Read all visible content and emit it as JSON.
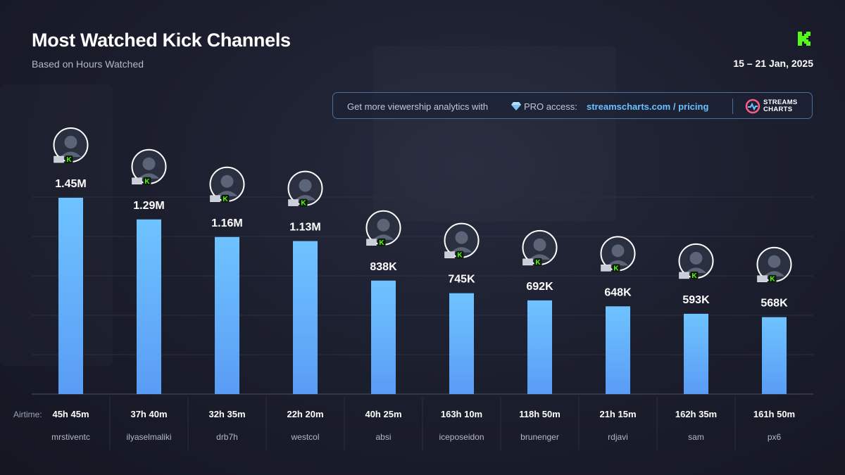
{
  "header": {
    "title": "Most Watched Kick Channels",
    "subtitle": "Based on Hours Watched",
    "date_range": "15 – 21 Jan, 2025",
    "logo_icon": "kick-logo-icon"
  },
  "promo": {
    "text": "Get more viewership analytics with",
    "icon": "diamond-icon",
    "access_text": "PRO access:",
    "link": "streamscharts.com / pricing",
    "brand_icon": "streams-charts-logo-icon",
    "brand_line1": "STREAMS",
    "brand_line2": "CHARTS"
  },
  "colors": {
    "bar_top": "#6ec3ff",
    "bar_bottom": "#5a9cf5",
    "kick_green": "#53fc18",
    "link": "#6cc0ff",
    "background": "#1c1f2e"
  },
  "airtime_label": "Airtime:",
  "chart_data": {
    "type": "bar",
    "title": "Most Watched Kick Channels",
    "subtitle": "Based on Hours Watched",
    "categories": [
      "mrstiventc",
      "ilyaselmaliki",
      "drb7h",
      "westcol",
      "absi",
      "iceposeidon",
      "brunenger",
      "rdjavi",
      "sam",
      "px6"
    ],
    "values": [
      1450000,
      1290000,
      1160000,
      1130000,
      838000,
      745000,
      692000,
      648000,
      593000,
      568000
    ],
    "value_labels": [
      "1.45M",
      "1.29M",
      "1.16M",
      "1.13M",
      "838K",
      "745K",
      "692K",
      "648K",
      "593K",
      "568K"
    ],
    "airtime": [
      "45h 45m",
      "37h 40m",
      "32h 35m",
      "22h 20m",
      "40h 25m",
      "163h 10m",
      "118h 50m",
      "21h 15m",
      "162h 35m",
      "161h 50m"
    ],
    "ylim": [
      0,
      1450000
    ],
    "grid": true,
    "avatars": [
      "avatar-icon",
      "avatar-icon",
      "avatar-icon",
      "avatar-icon",
      "avatar-icon",
      "avatar-icon",
      "avatar-icon",
      "avatar-icon",
      "avatar-icon",
      "avatar-icon"
    ],
    "flags": [
      "colombia-flag-icon",
      "morocco-flag-icon",
      "saudi-arabia-flag-icon",
      "colombia-flag-icon",
      "jordan-flag-icon",
      "usa-flag-icon",
      "argentina-flag-icon",
      "dominican-republic-flag-icon",
      "uk-flag-icon",
      "argentina-flag-icon"
    ]
  }
}
